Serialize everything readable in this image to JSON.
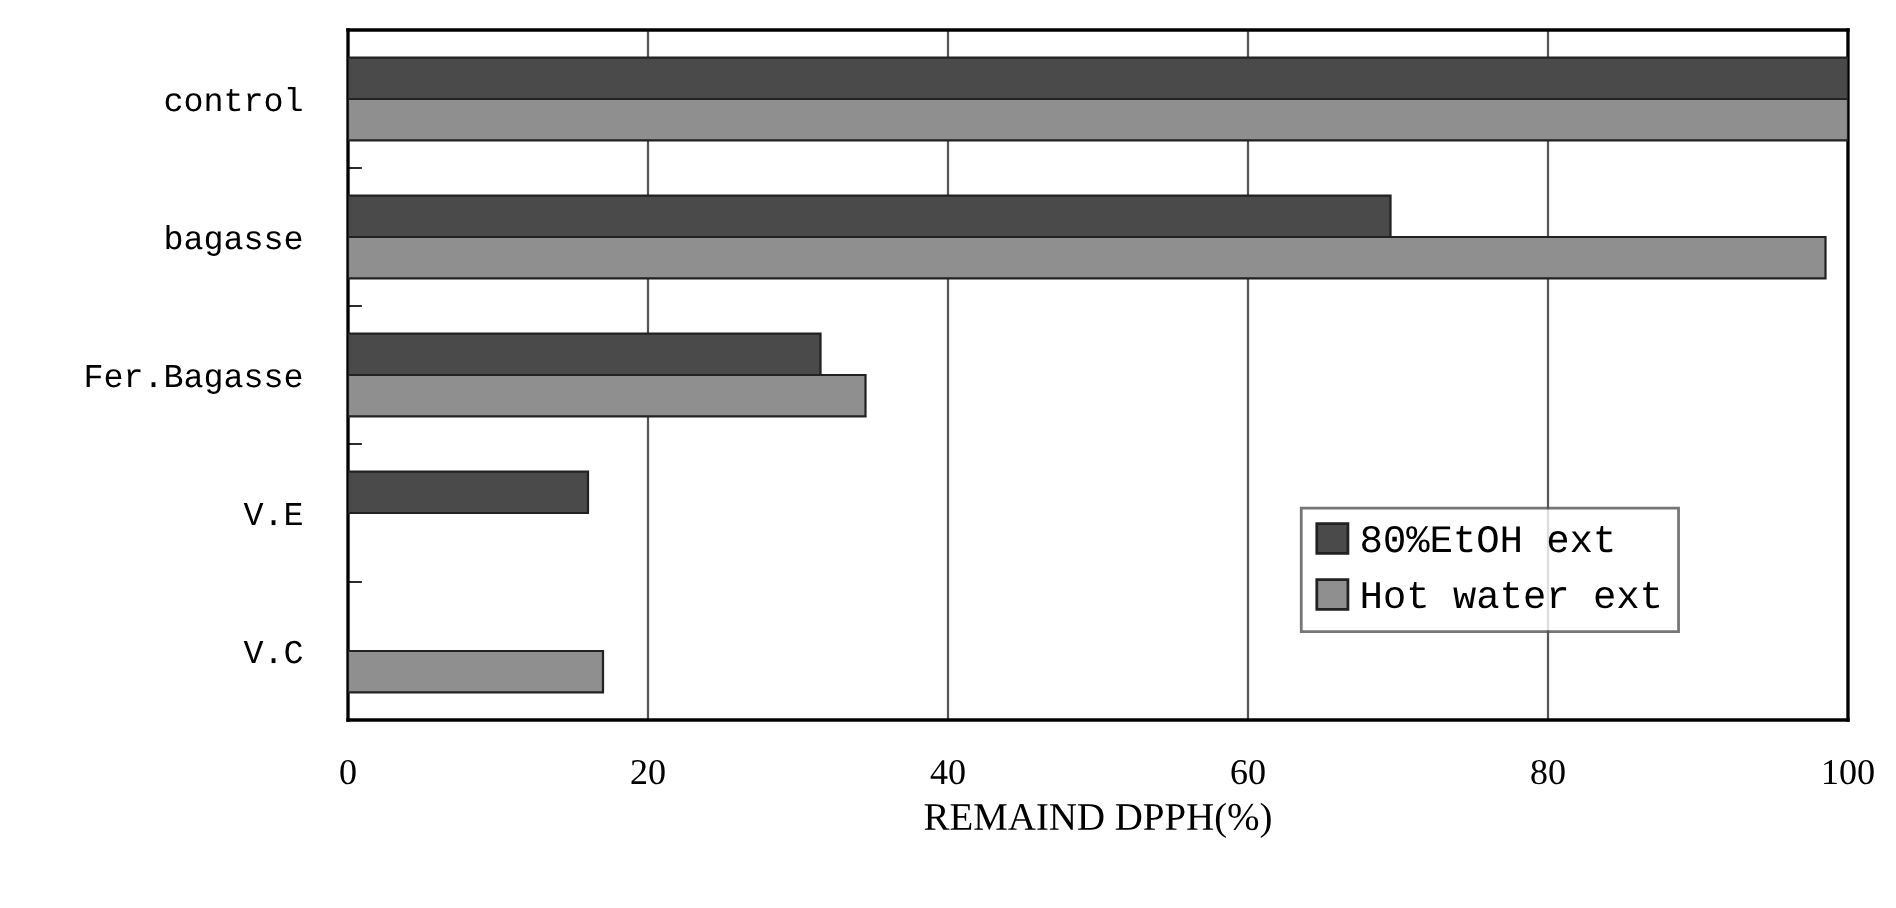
{
  "chart_data": {
    "type": "bar",
    "orientation": "horizontal",
    "xlabel": "REMAIND DPPH(%)",
    "categories": [
      "control",
      "bagasse",
      "Fer.Bagasse",
      "V.E",
      "V.C"
    ],
    "series": [
      {
        "name": "80%EtOH ext",
        "color": "#4a4a4a",
        "values": [
          100,
          69.5,
          31.5,
          16,
          null
        ]
      },
      {
        "name": "Hot water ext",
        "color": "#8f8f8f",
        "values": [
          100,
          98.5,
          34.5,
          null,
          17
        ]
      }
    ],
    "xlim": [
      0,
      100
    ],
    "xticks": [
      0,
      20,
      40,
      60,
      80,
      100
    ],
    "grid": "x",
    "legend": "lower right"
  }
}
